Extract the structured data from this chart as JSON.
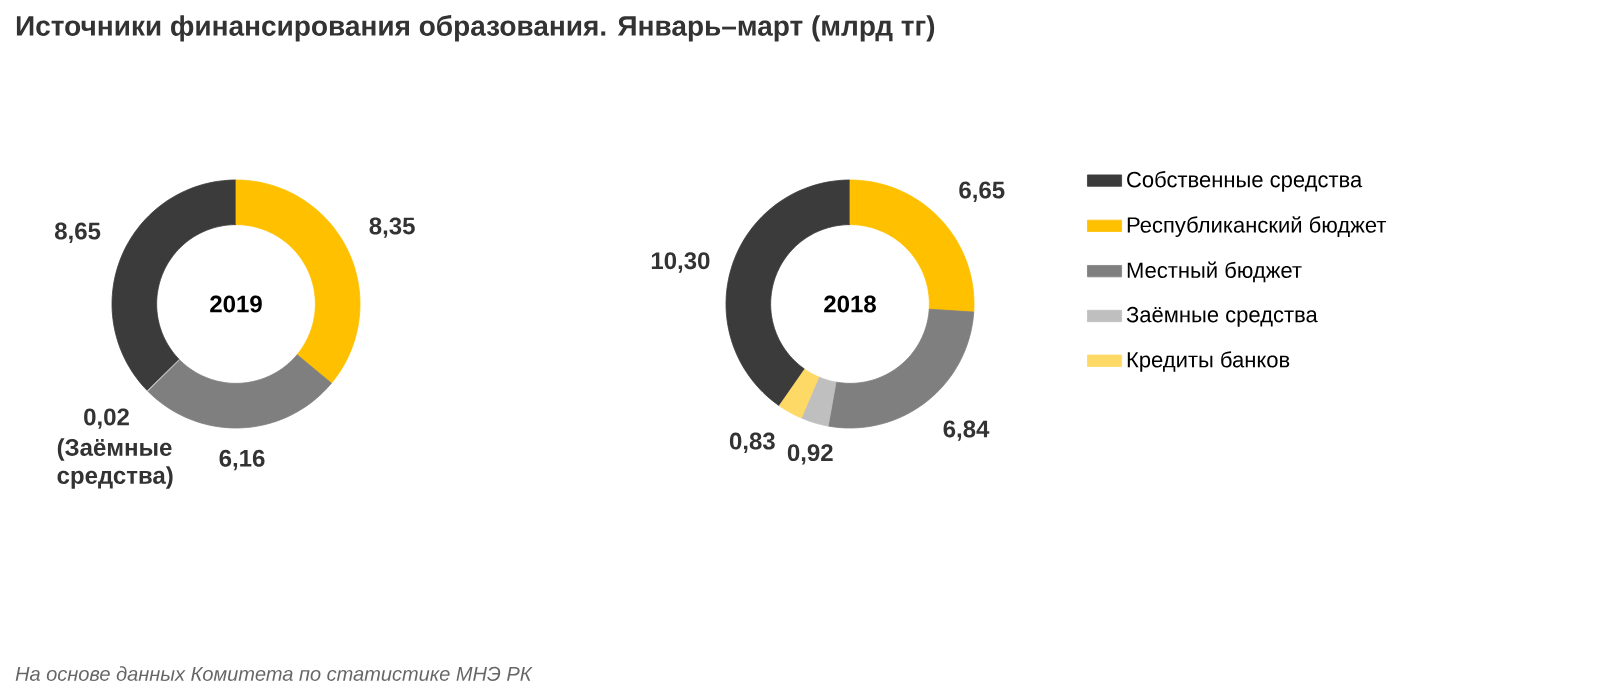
{
  "chart_data": [
    {
      "type": "donut",
      "title": "Источники финансирования образования. Январь–март (млрд тг)",
      "categories": [
        null,
        null,
        null,
        null,
        null
      ],
      "values": [
        8.65,
        8.35,
        6.16,
        0.02,
        null
      ],
      "value_labels": [
        "8,65",
        "8,35",
        "6,16",
        "0,02",
        null
      ],
      "colors": [
        "#3b3b3b",
        "#ffc000",
        "#7f7f7f",
        "#bfbfbf",
        "#ffd966"
      ],
      "annotations": [
        "2019",
        "(Заёмные средства)",
        "На основе данных Комитета по статистике МНЭ РК"
      ]
    },
    {
      "type": "donut",
      "categories": [
        "Собственные средства",
        "Республиканский бюджет",
        "Местный бюджет",
        "Заёмные средства",
        "Кредиты банков"
      ],
      "values": [
        10.3,
        6.65,
        6.84,
        0.92,
        0.83
      ],
      "value_labels": [
        "10,30",
        "6,65",
        "6,84",
        "0,92",
        "0,83"
      ],
      "colors": [
        "#3b3b3b",
        "#ffc000",
        "#7f7f7f",
        "#bfbfbf",
        "#ffd966"
      ],
      "legend": "right",
      "annotations": [
        "2018"
      ]
    }
  ]
}
